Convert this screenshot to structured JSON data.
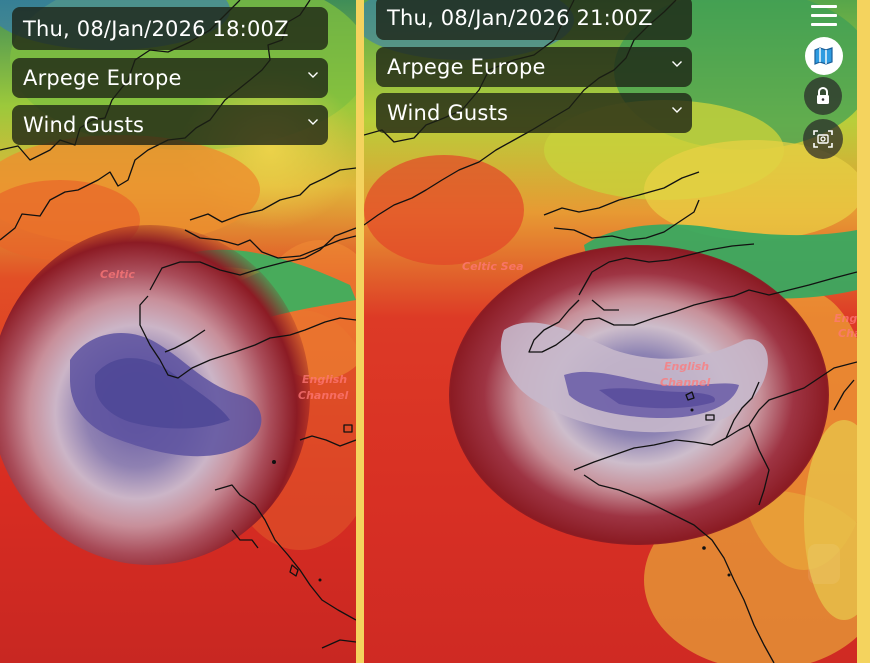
{
  "left_panel": {
    "datetime": "Thu, 08/Jan/2026 18:00Z",
    "model": "Arpege Europe",
    "parameter": "Wind Gusts",
    "labels": {
      "celtic_sea": "Celtic",
      "english_channel_1": "English",
      "english_channel_2": "Channel"
    }
  },
  "right_panel": {
    "datetime": "Thu, 08/Jan/2026 21:00Z",
    "model": "Arpege Europe",
    "parameter": "Wind Gusts",
    "labels": {
      "celtic_sea": "Celtic Sea",
      "english_channel_1": "English",
      "english_channel_2": "Channel",
      "edge_1": "Engl",
      "edge_2": "Cha"
    }
  },
  "toolbar": {
    "icons": [
      "menu-icon",
      "map-layers-icon",
      "lock-icon",
      "screenshot-icon",
      "side-handle-icon"
    ]
  },
  "colors": {
    "divider": "#f4d35e",
    "gust_low": "#36b26a",
    "gust_mid": "#f0d44b",
    "gust_high": "#df2d28",
    "gust_core": "#6d5fa8",
    "overlay_dark": "#1c2114"
  }
}
